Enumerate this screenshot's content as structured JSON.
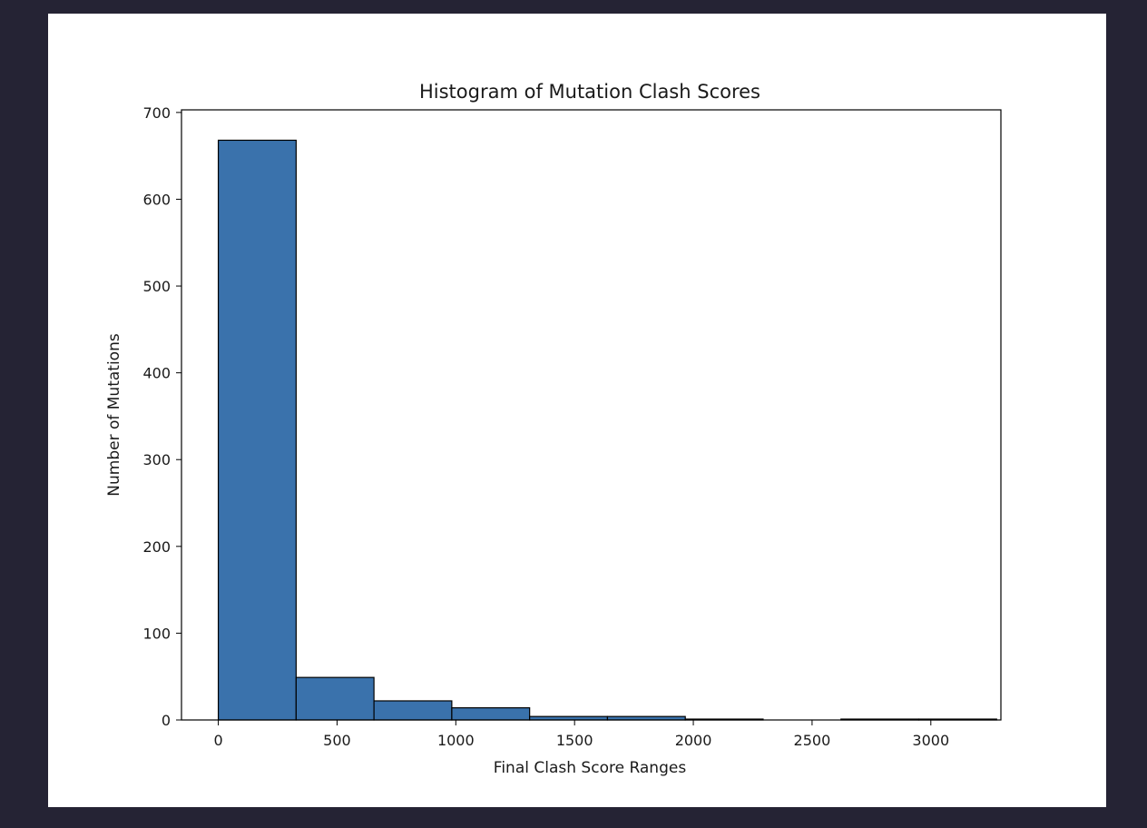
{
  "chart_data": {
    "type": "bar",
    "title": "Histogram of Mutation Clash Scores",
    "xlabel": "Final Clash Score Ranges",
    "ylabel": "Number of Mutations",
    "xlim": [
      -155,
      3295
    ],
    "ylim": [
      0,
      703
    ],
    "xticks": [
      0,
      500,
      1000,
      1500,
      2000,
      2500,
      3000
    ],
    "xtick_labels": [
      "0",
      "500",
      "1000",
      "1500",
      "2000",
      "2500",
      "3000"
    ],
    "yticks": [
      0,
      100,
      200,
      300,
      400,
      500,
      600,
      700
    ],
    "ytick_labels": [
      "0",
      "100",
      "200",
      "300",
      "400",
      "500",
      "600",
      "700"
    ],
    "bin_edges": [
      0,
      327.7,
      655.4,
      983.1,
      1310.8,
      1638.5,
      1966.2,
      2293.9,
      2621.6,
      2949.3,
      3277
    ],
    "values": [
      668,
      49,
      22,
      14,
      4,
      4,
      1,
      0,
      1,
      1
    ],
    "bar_color": "#3a72ac",
    "edge_color": "#000000",
    "grid": false
  }
}
